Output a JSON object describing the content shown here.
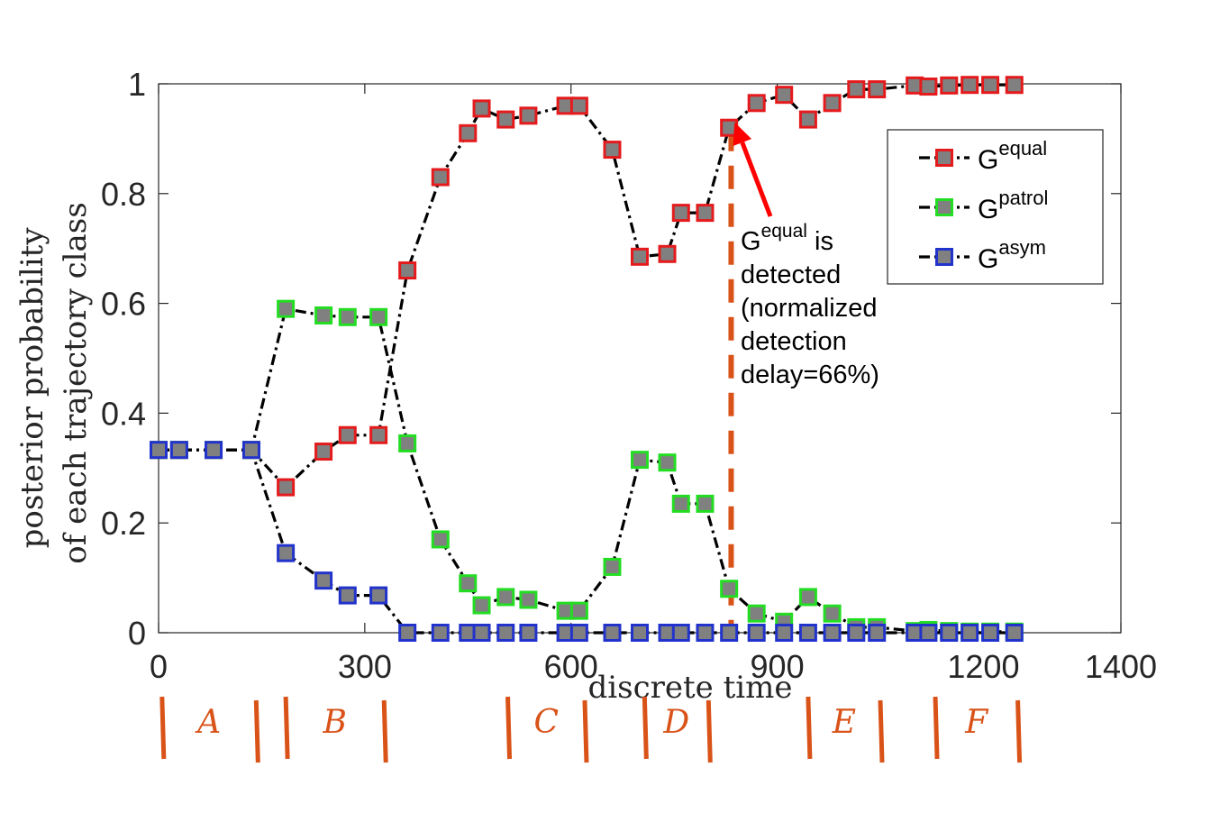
{
  "chart_data": {
    "type": "line",
    "xlabel": "discrete time",
    "ylabel_lines": [
      "posterior probability",
      "of each trajectory class"
    ],
    "xlim": [
      0,
      1400
    ],
    "ylim": [
      0,
      1
    ],
    "xticks": [
      0,
      300,
      600,
      900,
      1200,
      1400
    ],
    "yticks": [
      0,
      0.2,
      0.4,
      0.6,
      0.8,
      1
    ],
    "ytick_labels": [
      "0",
      "0.2",
      "0.4",
      "0.6",
      "0.8",
      "1"
    ],
    "x": [
      0,
      30,
      80,
      135,
      185,
      240,
      275,
      320,
      362,
      410,
      450,
      470,
      505,
      538,
      592,
      612,
      660,
      700,
      740,
      760,
      795,
      830,
      870,
      910,
      945,
      980,
      1015,
      1045,
      1100,
      1120,
      1150,
      1180,
      1210,
      1245
    ],
    "series": [
      {
        "name": "G",
        "sup": "equal",
        "edge_color": "#e41a1c",
        "values": [
          0.333,
          0.333,
          0.333,
          0.333,
          0.265,
          0.33,
          0.36,
          0.36,
          0.66,
          0.83,
          0.91,
          0.955,
          0.935,
          0.942,
          0.96,
          0.96,
          0.88,
          0.685,
          0.69,
          0.765,
          0.765,
          0.92,
          0.965,
          0.98,
          0.935,
          0.965,
          0.99,
          0.99,
          0.997,
          0.995,
          0.997,
          0.998,
          0.998,
          0.998
        ]
      },
      {
        "name": "G",
        "sup": "patrol",
        "edge_color": "#22dd22",
        "values": [
          0.333,
          0.333,
          0.333,
          0.333,
          0.59,
          0.578,
          0.575,
          0.575,
          0.345,
          0.17,
          0.09,
          0.05,
          0.065,
          0.06,
          0.04,
          0.04,
          0.12,
          0.315,
          0.31,
          0.235,
          0.235,
          0.08,
          0.035,
          0.02,
          0.065,
          0.035,
          0.01,
          0.01,
          0.003,
          0.005,
          0.003,
          0.002,
          0.002,
          0.002
        ]
      },
      {
        "name": "G",
        "sup": "asym",
        "edge_color": "#2233cc",
        "values": [
          0.333,
          0.333,
          0.333,
          0.333,
          0.145,
          0.095,
          0.068,
          0.068,
          0,
          0,
          0,
          0,
          0,
          0,
          0,
          0,
          0,
          0,
          0,
          0,
          0,
          0,
          0,
          0,
          0,
          0,
          0,
          0,
          0,
          0,
          0,
          0,
          0,
          0
        ]
      }
    ],
    "detection_line": {
      "x": 833,
      "color": "#d95319"
    },
    "annotation": {
      "arrow_target": {
        "x": 838,
        "y": 0.93
      },
      "arrow_color": "#ff0000",
      "base": "G",
      "sup": "equal",
      "tail": " is",
      "lines": [
        "detected",
        "(normalized",
        "detection",
        "delay=66%)"
      ]
    },
    "segments": [
      {
        "label": "A",
        "start": 5,
        "end": 142
      },
      {
        "label": "B",
        "start": 185,
        "end": 328
      },
      {
        "label": "C",
        "start": 508,
        "end": 620
      },
      {
        "label": "D",
        "start": 707,
        "end": 800
      },
      {
        "label": "E",
        "start": 945,
        "end": 1050
      },
      {
        "label": "F",
        "start": 1130,
        "end": 1250
      }
    ],
    "legend_position": "top-right"
  }
}
